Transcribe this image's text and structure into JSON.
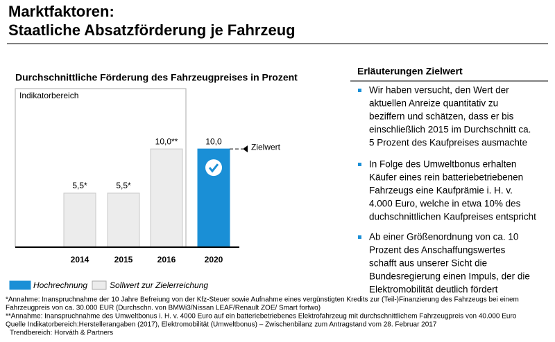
{
  "header": {
    "title_lines": [
      "Marktfaktoren:",
      "Staatliche Absatzförderung je Fahrzeug"
    ]
  },
  "chart_data": {
    "type": "bar",
    "title": "Durchschnittliche Förderung des Fahrzeugpreises in Prozent",
    "panel_label": "Indikatorbereich",
    "categories": [
      "2014",
      "2015",
      "2016",
      "2020"
    ],
    "values": [
      5.5,
      5.5,
      10,
      10
    ],
    "value_labels": [
      "5,5*",
      "5,5*",
      "10,0**",
      "10,0"
    ],
    "colors": [
      "#ececec",
      "#ececec",
      "#ececec",
      "#1a8fd6"
    ],
    "ylim": [
      0,
      16
    ],
    "target": {
      "value": 10,
      "label": "Zielwert"
    },
    "legend": [
      {
        "name": "Hochrechnung",
        "color": "#1a8fd6"
      },
      {
        "name": "Sollwert zur Zielerreichung",
        "color": "#ececec"
      }
    ]
  },
  "explanation": {
    "title": "Erläuterungen Zielwert",
    "bullets": [
      [
        "Wir haben versucht, den Wert der",
        "aktuellen Anreize quantitativ zu",
        "beziffern und schätzen, dass er bis",
        "einschließlich 2015 im Durchschnitt ca.",
        "5 Prozent des Kaufpreises ausmachte"
      ],
      [
        "In Folge des Umweltbonus erhalten",
        "Käufer eines rein batteriebetriebenen",
        "Fahrzeugs eine Kaufprämie i. H. v.",
        "4.000 Euro, welche in etwa 10% des",
        "duchschnittlichen Kaufpreises entspricht"
      ],
      [
        "Ab einer Größenordnung von ca. 10",
        "Prozent des Anschaffungswertes",
        "schafft aus unserer Sicht die",
        "Bundesregierung einen Impuls, der die",
        "Elektromobilität deutlich fördert"
      ]
    ]
  },
  "footnotes": [
    "*Annahme: Inanspruchnahme der 10 Jahre Befreiung von der Kfz-Steuer sowie Aufnahme eines vergünstigten Kredits zur (Teil-)Finanzierung des Fahrzeugs bei einem",
    "Fahrzeugpreis von ca. 30.000 EUR (Durchschn. von BMWi3/Nissan LEAF/Renault ZOE/ Smart fortwo)",
    "**Annahme: Inanspruchnahme des Umweltbonus i. H. v. 4000 Euro auf ein batteriebetriebenes Elektrofahrzeug mit durchschnittlichem Fahrzeugpreis von 40.000 Euro",
    "Quelle Indikatorbereich:Herstellerangaben (2017), Elektromobilität (Umweltbonus) – Zwischenbilanz zum Antragstand vom 28. Februar 2017",
    "Trendbereich: Horváth & Partners"
  ]
}
